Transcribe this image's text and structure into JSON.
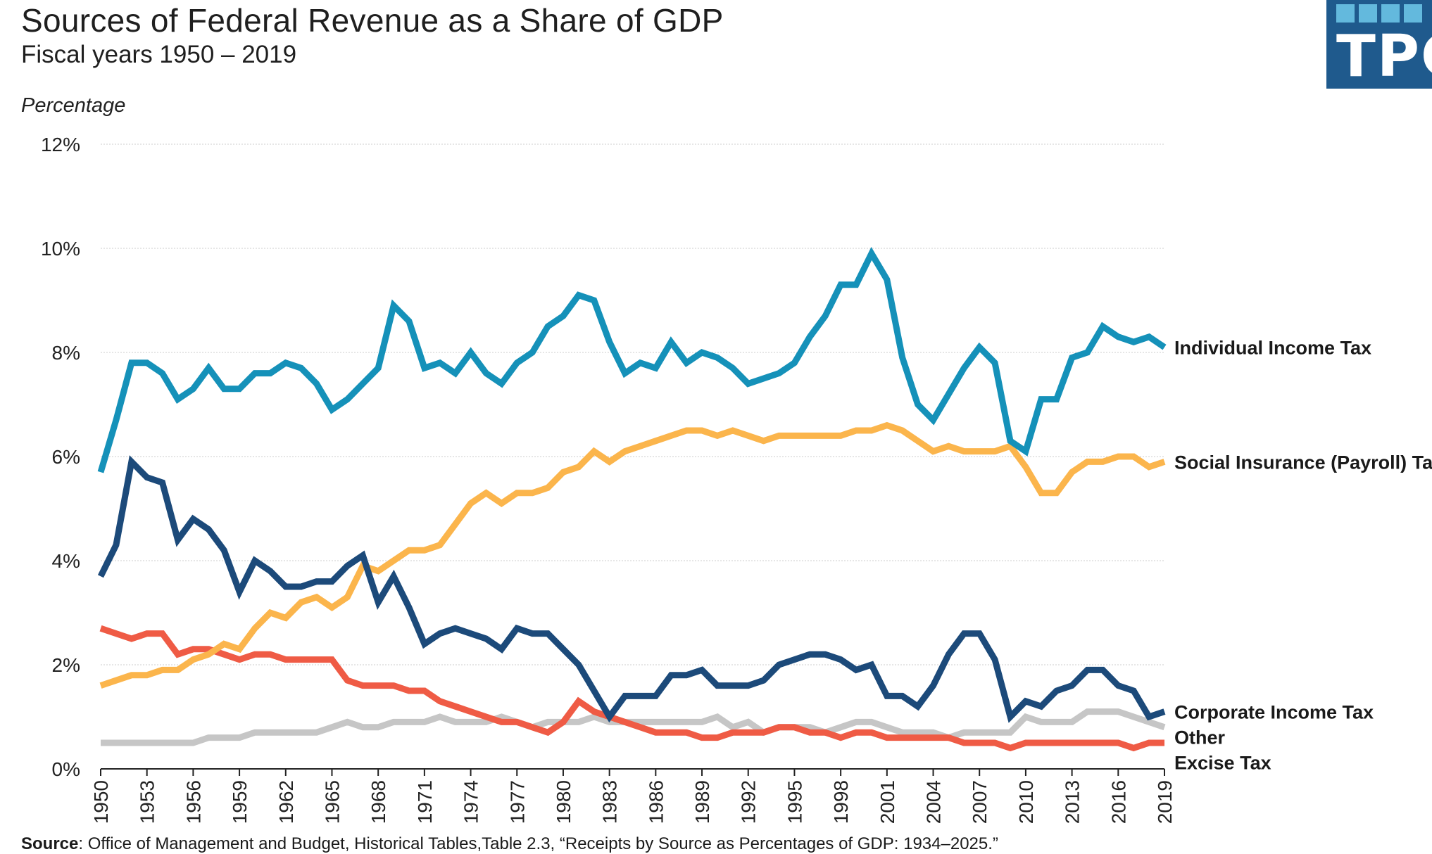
{
  "header": {
    "title": "Sources of Federal Revenue as a Share of GDP",
    "subtitle": "Fiscal years 1950 – 2019",
    "logo_text": "TPC"
  },
  "footer": {
    "source_label": "Source",
    "source_text": ": Office of Management and Budget, Historical Tables,Table 2.3, “Receipts by Source as Percentages of GDP: 1934–2025.”"
  },
  "colors": {
    "individual": "#1591b9",
    "social": "#fbb54c",
    "corporate": "#1c4a7a",
    "excise": "#ef5b45",
    "other": "#c6c6c6",
    "grid": "#d6d6d6",
    "axis": "#222222",
    "logo_bg": "#1f5a8d",
    "logo_square": "#63b9dd"
  },
  "chart_data": {
    "type": "line",
    "title": "Sources of Federal Revenue as a Share of GDP",
    "subtitle": "Fiscal years 1950 – 2019",
    "ylabel": "Percentage",
    "xlabel": "",
    "ylim": [
      0,
      12
    ],
    "xlim": [
      1950,
      2019
    ],
    "yticks": [
      0,
      2,
      4,
      6,
      8,
      10,
      12
    ],
    "ytick_labels": [
      "0%",
      "2%",
      "4%",
      "6%",
      "8%",
      "10%",
      "12%"
    ],
    "xtick_labels": [
      "1950",
      "1953",
      "1956",
      "1959",
      "1962",
      "1965",
      "1968",
      "1971",
      "1974",
      "1977",
      "1980",
      "1983",
      "1986",
      "1989",
      "1992",
      "1995",
      "1998",
      "2001",
      "2004",
      "2007",
      "2010",
      "2013",
      "2016",
      "2019"
    ],
    "grid": true,
    "legend": "direct labels at right end of lines",
    "x": [
      1950,
      1951,
      1952,
      1953,
      1954,
      1955,
      1956,
      1957,
      1958,
      1959,
      1960,
      1961,
      1962,
      1963,
      1964,
      1965,
      1966,
      1967,
      1968,
      1969,
      1970,
      1971,
      1972,
      1973,
      1974,
      1975,
      1976,
      1977,
      1978,
      1979,
      1980,
      1981,
      1982,
      1983,
      1984,
      1985,
      1986,
      1987,
      1988,
      1989,
      1990,
      1991,
      1992,
      1993,
      1994,
      1995,
      1996,
      1997,
      1998,
      1999,
      2000,
      2001,
      2002,
      2003,
      2004,
      2005,
      2006,
      2007,
      2008,
      2009,
      2010,
      2011,
      2012,
      2013,
      2014,
      2015,
      2016,
      2017,
      2018,
      2019
    ],
    "series": [
      {
        "name": "Individual Income Tax",
        "color_key": "individual",
        "values": [
          5.7,
          6.7,
          7.8,
          7.8,
          7.6,
          7.1,
          7.3,
          7.7,
          7.3,
          7.3,
          7.6,
          7.6,
          7.8,
          7.7,
          7.4,
          6.9,
          7.1,
          7.4,
          7.7,
          8.9,
          8.6,
          7.7,
          7.8,
          7.6,
          8.0,
          7.6,
          7.4,
          7.8,
          8.0,
          8.5,
          8.7,
          9.1,
          9.0,
          8.2,
          7.6,
          7.8,
          7.7,
          8.2,
          7.8,
          8.0,
          7.9,
          7.7,
          7.4,
          7.5,
          7.6,
          7.8,
          8.3,
          8.7,
          9.3,
          9.3,
          9.9,
          9.4,
          7.9,
          7.0,
          6.7,
          7.2,
          7.7,
          8.1,
          7.8,
          6.3,
          6.1,
          7.1,
          7.1,
          7.9,
          8.0,
          8.5,
          8.3,
          8.2,
          8.3,
          8.1
        ]
      },
      {
        "name": "Social Insurance (Payroll) Tax",
        "color_key": "social",
        "values": [
          1.6,
          1.7,
          1.8,
          1.8,
          1.9,
          1.9,
          2.1,
          2.2,
          2.4,
          2.3,
          2.7,
          3.0,
          2.9,
          3.2,
          3.3,
          3.1,
          3.3,
          3.9,
          3.8,
          4.0,
          4.2,
          4.2,
          4.3,
          4.7,
          5.1,
          5.3,
          5.1,
          5.3,
          5.3,
          5.4,
          5.7,
          5.8,
          6.1,
          5.9,
          6.1,
          6.2,
          6.3,
          6.4,
          6.5,
          6.5,
          6.4,
          6.5,
          6.4,
          6.3,
          6.4,
          6.4,
          6.4,
          6.4,
          6.4,
          6.5,
          6.5,
          6.6,
          6.5,
          6.3,
          6.1,
          6.2,
          6.1,
          6.1,
          6.1,
          6.2,
          5.8,
          5.3,
          5.3,
          5.7,
          5.9,
          5.9,
          6.0,
          6.0,
          5.8,
          5.9
        ]
      },
      {
        "name": "Corporate Income Tax",
        "color_key": "corporate",
        "values": [
          3.7,
          4.3,
          5.9,
          5.6,
          5.5,
          4.4,
          4.8,
          4.6,
          4.2,
          3.4,
          4.0,
          3.8,
          3.5,
          3.5,
          3.6,
          3.6,
          3.9,
          4.1,
          3.2,
          3.7,
          3.1,
          2.4,
          2.6,
          2.7,
          2.6,
          2.5,
          2.3,
          2.7,
          2.6,
          2.6,
          2.3,
          2.0,
          1.5,
          1.0,
          1.4,
          1.4,
          1.4,
          1.8,
          1.8,
          1.9,
          1.6,
          1.6,
          1.6,
          1.7,
          2.0,
          2.1,
          2.2,
          2.2,
          2.1,
          1.9,
          2.0,
          1.4,
          1.4,
          1.2,
          1.6,
          2.2,
          2.6,
          2.6,
          2.1,
          1.0,
          1.3,
          1.2,
          1.5,
          1.6,
          1.9,
          1.9,
          1.6,
          1.5,
          1.0,
          1.1
        ]
      },
      {
        "name": "Other",
        "color_key": "other",
        "values": [
          0.5,
          0.5,
          0.5,
          0.5,
          0.5,
          0.5,
          0.5,
          0.6,
          0.6,
          0.6,
          0.7,
          0.7,
          0.7,
          0.7,
          0.7,
          0.8,
          0.9,
          0.8,
          0.8,
          0.9,
          0.9,
          0.9,
          1.0,
          0.9,
          0.9,
          0.9,
          1.0,
          0.9,
          0.8,
          0.9,
          0.9,
          0.9,
          1.0,
          0.9,
          0.9,
          0.9,
          0.9,
          0.9,
          0.9,
          0.9,
          1.0,
          0.8,
          0.9,
          0.7,
          0.8,
          0.8,
          0.8,
          0.7,
          0.8,
          0.9,
          0.9,
          0.8,
          0.7,
          0.7,
          0.7,
          0.6,
          0.7,
          0.7,
          0.7,
          0.7,
          1.0,
          0.9,
          0.9,
          0.9,
          1.1,
          1.1,
          1.1,
          1.0,
          0.9,
          0.8
        ]
      },
      {
        "name": "Excise Tax",
        "color_key": "excise",
        "values": [
          2.7,
          2.6,
          2.5,
          2.6,
          2.6,
          2.2,
          2.3,
          2.3,
          2.2,
          2.1,
          2.2,
          2.2,
          2.1,
          2.1,
          2.1,
          2.1,
          1.7,
          1.6,
          1.6,
          1.6,
          1.5,
          1.5,
          1.3,
          1.2,
          1.1,
          1.0,
          0.9,
          0.9,
          0.8,
          0.7,
          0.9,
          1.3,
          1.1,
          1.0,
          0.9,
          0.8,
          0.7,
          0.7,
          0.7,
          0.6,
          0.6,
          0.7,
          0.7,
          0.7,
          0.8,
          0.8,
          0.7,
          0.7,
          0.6,
          0.7,
          0.7,
          0.6,
          0.6,
          0.6,
          0.6,
          0.6,
          0.5,
          0.5,
          0.5,
          0.4,
          0.5,
          0.5,
          0.5,
          0.5,
          0.5,
          0.5,
          0.5,
          0.4,
          0.5,
          0.5
        ]
      }
    ]
  }
}
